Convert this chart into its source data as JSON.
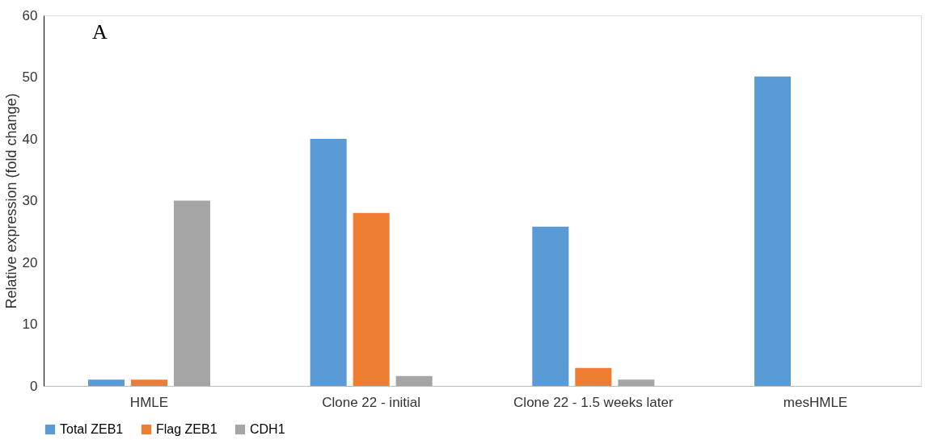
{
  "chart_data": {
    "type": "bar",
    "ylabel": "Relative expression (fold change)",
    "categories": [
      "HMLE",
      "Clone 22 - initial",
      "Clone 22 - 1.5 weeks later",
      "mesHMLE"
    ],
    "series": [
      {
        "name": "Total ZEB1",
        "color": "#5b9bd5",
        "values": [
          1,
          40,
          25.8,
          50.1
        ]
      },
      {
        "name": "Flag ZEB1",
        "color": "#ed7d31",
        "values": [
          1,
          28,
          2.9,
          null
        ]
      },
      {
        "name": "CDH1",
        "color": "#a5a5a5",
        "values": [
          30,
          1.6,
          1,
          null
        ]
      }
    ],
    "ylim": [
      0,
      60
    ],
    "yticks": [
      0,
      10,
      20,
      30,
      40,
      50,
      60
    ],
    "grid": false,
    "legend": "bottom",
    "annotations": [
      "A"
    ]
  }
}
